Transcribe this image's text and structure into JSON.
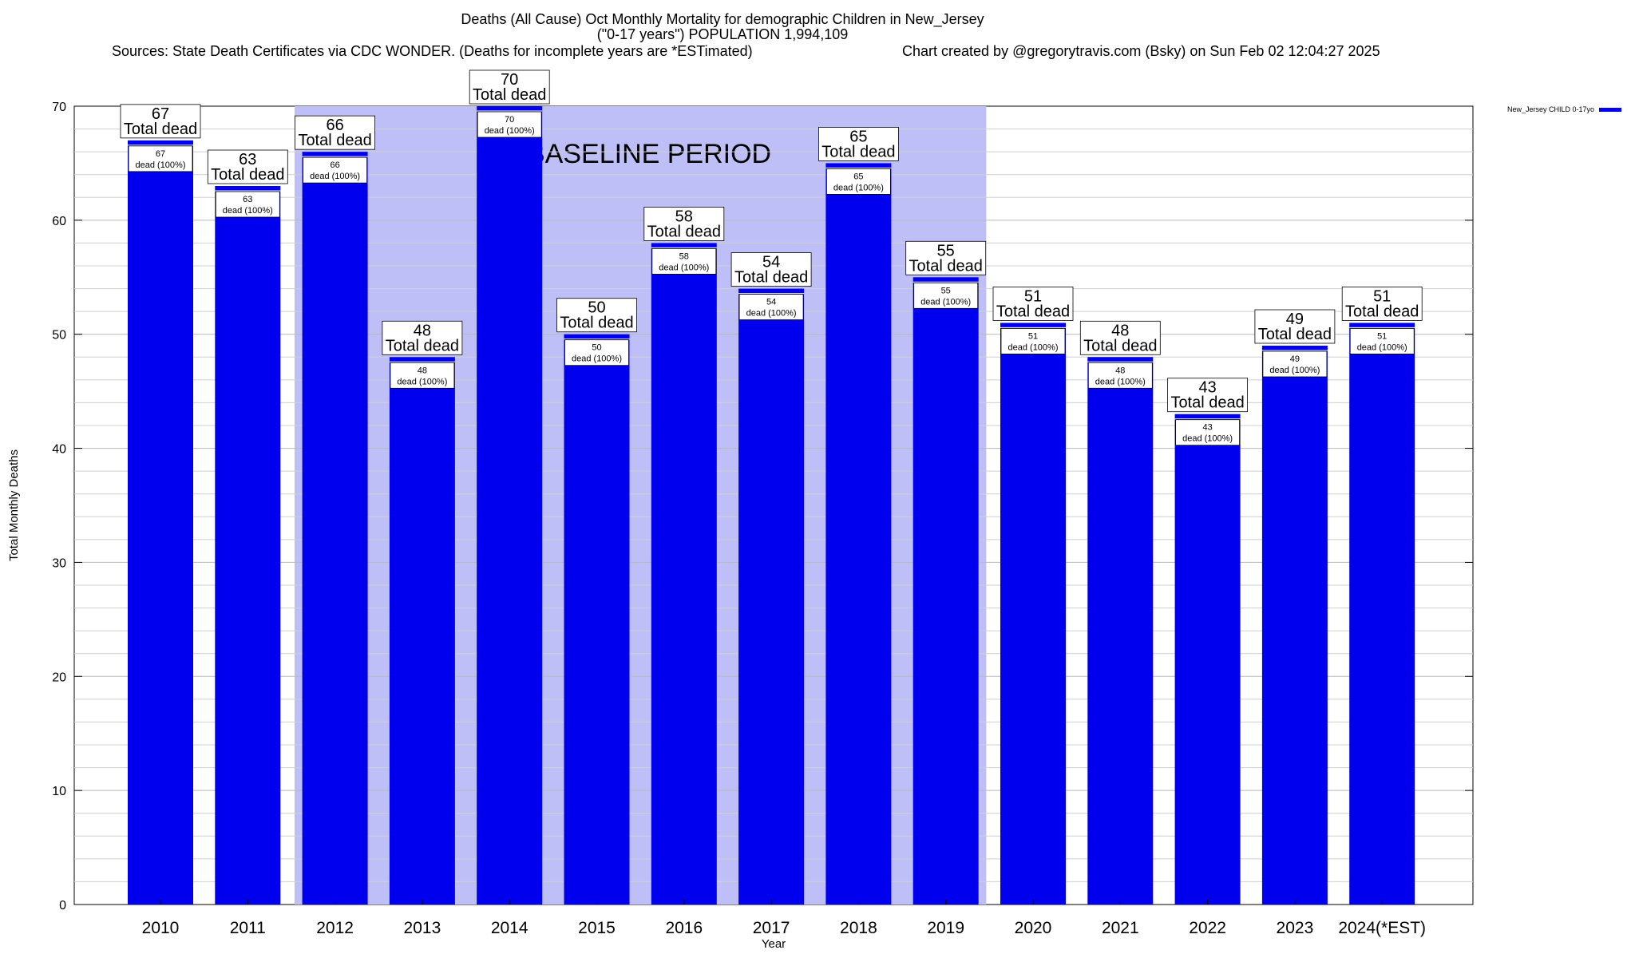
{
  "header": {
    "title_line1": "Deaths (All Cause) Oct Monthly Mortality for demographic Children in New_Jersey",
    "title_line2": "(\"0-17 years\") POPULATION 1,994,109",
    "sources": "Sources: State Death Certificates via CDC WONDER. (Deaths for incomplete years are *ESTimated)",
    "credit": "Chart created by @gregorytravis.com (Bsky) on Sun Feb 02 12:04:27 2025"
  },
  "chart_data": {
    "type": "bar",
    "xlabel": "Year",
    "ylabel": "Total Monthly Deaths",
    "ylim": [
      0,
      70
    ],
    "yticks": [
      0,
      10,
      20,
      30,
      40,
      50,
      60,
      70
    ],
    "grid": true,
    "legend_position": "top-right",
    "categories": [
      "2010",
      "2011",
      "2012",
      "2013",
      "2014",
      "2015",
      "2016",
      "2017",
      "2018",
      "2019",
      "2020",
      "2021",
      "2022",
      "2023",
      "2024(*EST)"
    ],
    "series": [
      {
        "name": "New_Jersey CHILD 0-17yo",
        "color": "#0000ee",
        "values": [
          67,
          63,
          66,
          48,
          70,
          50,
          58,
          54,
          65,
          55,
          51,
          48,
          43,
          49,
          51
        ]
      }
    ],
    "total_label_text": "Total dead",
    "inner_label_text": "dead (100%)",
    "baseline": {
      "label": "BASELINE PERIOD",
      "start_category": "2012",
      "end_category": "2019",
      "color": "#bfbff7"
    }
  }
}
